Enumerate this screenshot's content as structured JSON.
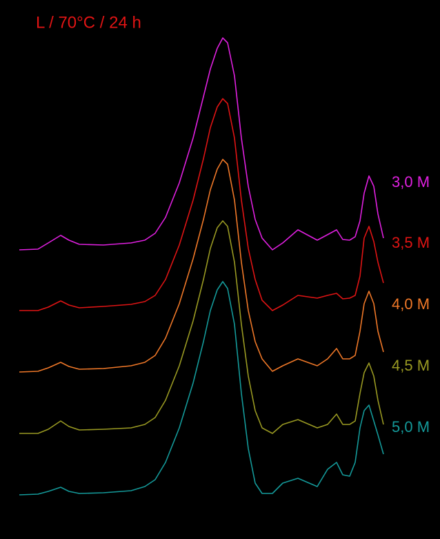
{
  "chart_data": {
    "type": "line",
    "title": "L / 70°C / 24 h",
    "x": [
      0,
      27,
      42,
      60,
      72,
      87,
      122,
      162,
      182,
      197,
      212,
      232,
      252,
      267,
      277,
      287,
      295,
      302,
      312,
      322,
      332,
      342,
      352,
      367,
      382,
      404,
      432,
      447,
      460,
      469,
      479,
      487,
      494,
      500,
      507,
      514,
      520,
      528
    ],
    "series": [
      {
        "name": "3,0 M",
        "color": "#e020e0",
        "values": [
          419,
          420,
          429,
          440,
          433,
          427,
          426,
          429,
          433,
          443,
          466,
          516,
          581,
          641,
          681,
          711,
          726,
          719,
          671,
          581,
          511,
          463,
          436,
          419,
          429,
          448,
          433,
          441,
          448,
          434,
          433,
          438,
          461,
          501,
          526,
          511,
          471,
          436
        ]
      },
      {
        "name": "3,5 M",
        "color": "#e01414",
        "values": [
          331,
          331,
          336,
          345,
          339,
          335,
          337,
          340,
          344,
          353,
          376,
          426,
          491,
          551,
          596,
          626,
          638,
          631,
          581,
          491,
          421,
          376,
          346,
          331,
          339,
          353,
          349,
          353,
          356,
          348,
          349,
          353,
          381,
          436,
          453,
          431,
          401,
          371
        ]
      },
      {
        "name": "4,0 M",
        "color": "#f07828",
        "values": [
          242,
          243,
          248,
          256,
          250,
          246,
          247,
          251,
          256,
          266,
          291,
          341,
          406,
          463,
          506,
          536,
          550,
          543,
          491,
          401,
          331,
          286,
          261,
          243,
          251,
          261,
          251,
          261,
          276,
          261,
          261,
          266,
          301,
          341,
          359,
          341,
          301,
          271
        ]
      },
      {
        "name": "4,5 M",
        "color": "#9a9a22",
        "values": [
          153,
          153,
          159,
          171,
          163,
          158,
          159,
          161,
          166,
          176,
          201,
          251,
          316,
          376,
          421,
          451,
          461,
          453,
          401,
          311,
          236,
          186,
          161,
          153,
          166,
          173,
          161,
          166,
          181,
          166,
          166,
          171,
          211,
          241,
          255,
          236,
          201,
          166
        ]
      },
      {
        "name": "5,0 M",
        "color": "#149a9a",
        "values": [
          64,
          65,
          69,
          75,
          69,
          66,
          67,
          70,
          76,
          86,
          111,
          161,
          226,
          286,
          331,
          361,
          373,
          363,
          311,
          211,
          131,
          81,
          66,
          66,
          81,
          88,
          76,
          101,
          111,
          93,
          91,
          111,
          161,
          186,
          194,
          171,
          151,
          123
        ]
      }
    ]
  }
}
